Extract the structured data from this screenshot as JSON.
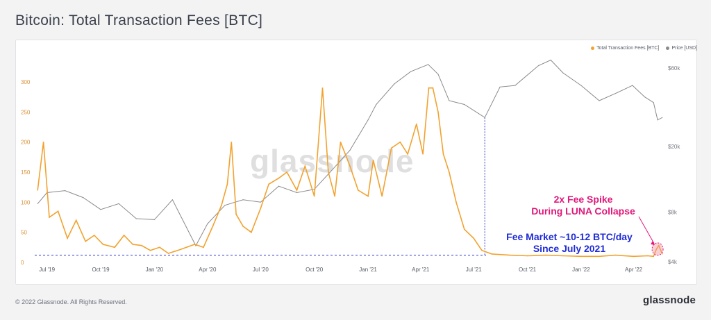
{
  "title": "Bitcoin: Total Transaction Fees [BTC]",
  "watermark": "glassnode",
  "copyright": "© 2022 Glassnode. All Rights Reserved.",
  "brand": "glassnode",
  "colors": {
    "fees": "#f2a22e",
    "price": "#8a8a8a",
    "spike": "#e0197a",
    "fee_market": "#1f2bd6"
  },
  "annotations": {
    "spike": [
      "2x Fee Spike",
      "During LUNA Collapse"
    ],
    "fee_market": [
      "Fee Market ~10-12 BTC/day",
      "Since July 2021"
    ]
  },
  "chart_data": {
    "type": "line",
    "title": "Bitcoin: Total Transaction Fees [BTC]",
    "legend": [
      "Total Transaction Fees [BTC]",
      "Price [USD]"
    ],
    "legend_position": "top-right",
    "grid": false,
    "x_ticks": [
      "Jul '19",
      "Oct '19",
      "Jan '20",
      "Apr '20",
      "Jul '20",
      "Oct '20",
      "Jan '21",
      "Apr '21",
      "Jul '21",
      "Oct '21",
      "Jan '22",
      "Apr '22"
    ],
    "y_left_ticks": [
      "0",
      "50",
      "100",
      "150",
      "200",
      "250",
      "300"
    ],
    "y_left_range": [
      0,
      330
    ],
    "y_right_ticks": [
      "$4k",
      "$8k",
      "$20k",
      "$60k"
    ],
    "y_right_scale": "log",
    "series": [
      {
        "name": "Total Transaction Fees [BTC]",
        "axis": "left",
        "x": [
          "2019-06-15",
          "2019-06-25",
          "2019-07-05",
          "2019-07-20",
          "2019-08-05",
          "2019-08-20",
          "2019-09-05",
          "2019-09-20",
          "2019-10-05",
          "2019-10-25",
          "2019-11-10",
          "2019-11-25",
          "2019-12-10",
          "2019-12-25",
          "2020-01-10",
          "2020-01-25",
          "2020-02-10",
          "2020-02-25",
          "2020-03-10",
          "2020-03-25",
          "2020-04-10",
          "2020-04-25",
          "2020-05-05",
          "2020-05-12",
          "2020-05-20",
          "2020-06-01",
          "2020-06-15",
          "2020-07-01",
          "2020-07-15",
          "2020-08-01",
          "2020-08-15",
          "2020-09-01",
          "2020-09-15",
          "2020-10-01",
          "2020-10-15",
          "2020-10-25",
          "2020-11-05",
          "2020-11-15",
          "2020-12-01",
          "2020-12-15",
          "2021-01-01",
          "2021-01-10",
          "2021-01-25",
          "2021-02-10",
          "2021-02-25",
          "2021-03-10",
          "2021-03-25",
          "2021-04-05",
          "2021-04-15",
          "2021-04-22",
          "2021-05-01",
          "2021-05-10",
          "2021-05-20",
          "2021-06-01",
          "2021-06-15",
          "2021-07-01",
          "2021-07-15",
          "2021-08-01",
          "2021-09-01",
          "2021-10-01",
          "2021-11-01",
          "2021-12-01",
          "2022-01-01",
          "2022-02-01",
          "2022-03-01",
          "2022-04-01",
          "2022-04-25",
          "2022-05-05",
          "2022-05-10",
          "2022-05-14",
          "2022-05-20"
        ],
        "y": [
          120,
          200,
          75,
          85,
          40,
          70,
          35,
          45,
          30,
          25,
          45,
          30,
          28,
          20,
          25,
          15,
          20,
          25,
          30,
          25,
          60,
          95,
          130,
          200,
          80,
          60,
          50,
          90,
          130,
          140,
          150,
          120,
          160,
          110,
          290,
          150,
          110,
          200,
          160,
          120,
          110,
          170,
          110,
          190,
          200,
          180,
          230,
          180,
          290,
          290,
          250,
          180,
          150,
          100,
          55,
          40,
          20,
          14,
          12,
          11,
          12,
          11,
          10,
          10,
          12,
          10,
          11,
          10,
          22,
          28,
          14
        ]
      },
      {
        "name": "Price [USD]",
        "axis": "right",
        "x": [
          "2019-06-15",
          "2019-07-01",
          "2019-08-01",
          "2019-09-01",
          "2019-10-01",
          "2019-11-01",
          "2019-12-01",
          "2020-01-01",
          "2020-02-01",
          "2020-03-12",
          "2020-04-01",
          "2020-05-01",
          "2020-06-01",
          "2020-07-01",
          "2020-08-01",
          "2020-09-01",
          "2020-10-01",
          "2020-11-01",
          "2020-12-01",
          "2021-01-01",
          "2021-01-15",
          "2021-02-15",
          "2021-03-15",
          "2021-04-14",
          "2021-05-01",
          "2021-05-20",
          "2021-06-15",
          "2021-07-20",
          "2021-08-15",
          "2021-09-10",
          "2021-10-20",
          "2021-11-10",
          "2021-12-01",
          "2022-01-01",
          "2022-02-01",
          "2022-03-01",
          "2022-03-30",
          "2022-04-20",
          "2022-05-05",
          "2022-05-12",
          "2022-05-20"
        ],
        "y": [
          9000,
          10500,
          10800,
          9800,
          8300,
          9000,
          7300,
          7200,
          9500,
          5000,
          6800,
          8800,
          9500,
          9200,
          11500,
          10500,
          11000,
          14500,
          19000,
          29000,
          36000,
          48000,
          57000,
          63000,
          55000,
          38000,
          36000,
          30000,
          46000,
          47000,
          62000,
          67000,
          56000,
          47000,
          38000,
          42000,
          47000,
          40000,
          37000,
          29000,
          30000
        ]
      }
    ]
  }
}
